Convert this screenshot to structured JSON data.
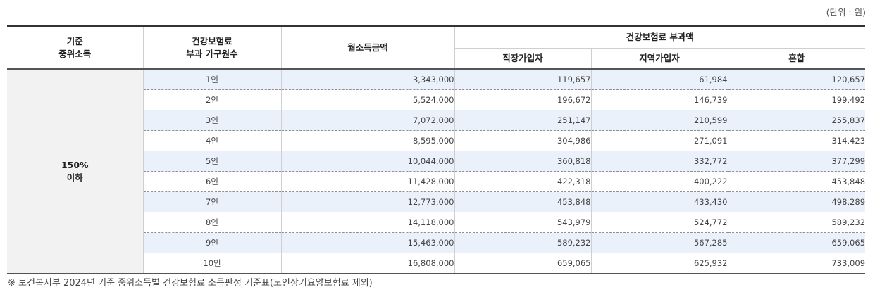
{
  "unit_label": "(단위 : 원)",
  "header": {
    "col_income_line1": "기준",
    "col_income_line2": "중위소득",
    "col_household_line1": "건강보험료",
    "col_household_line2": "부과 가구원수",
    "col_monthly": "월소득금액",
    "group_label": "건강보험료 부과액",
    "sub_workplace": "직장가입자",
    "sub_regional": "지역가입자",
    "sub_mixed": "혼합"
  },
  "category": {
    "line1": "150%",
    "line2": "이하"
  },
  "rows": [
    {
      "household": "1인",
      "monthly": "3,343,000",
      "workplace": "119,657",
      "regional": "61,984",
      "mixed": "120,657"
    },
    {
      "household": "2인",
      "monthly": "5,524,000",
      "workplace": "196,672",
      "regional": "146,739",
      "mixed": "199,492"
    },
    {
      "household": "3인",
      "monthly": "7,072,000",
      "workplace": "251,147",
      "regional": "210,599",
      "mixed": "255,837"
    },
    {
      "household": "4인",
      "monthly": "8,595,000",
      "workplace": "304,986",
      "regional": "271,091",
      "mixed": "314,423"
    },
    {
      "household": "5인",
      "monthly": "10,044,000",
      "workplace": "360,818",
      "regional": "332,772",
      "mixed": "377,299"
    },
    {
      "household": "6인",
      "monthly": "11,428,000",
      "workplace": "422,318",
      "regional": "400,222",
      "mixed": "453,848"
    },
    {
      "household": "7인",
      "monthly": "12,773,000",
      "workplace": "453,848",
      "regional": "433,430",
      "mixed": "498,289"
    },
    {
      "household": "8인",
      "monthly": "14,118,000",
      "workplace": "543,979",
      "regional": "524,772",
      "mixed": "589,232"
    },
    {
      "household": "9인",
      "monthly": "15,463,000",
      "workplace": "589,232",
      "regional": "567,285",
      "mixed": "659,065"
    },
    {
      "household": "10인",
      "monthly": "16,808,000",
      "workplace": "659,065",
      "regional": "625,932",
      "mixed": "733,009"
    }
  ],
  "footnote": "※ 보건복지부 2024년 기준 중위소득별 건강보험료 소득판정 기준표(노인장기요양보험료 제외)",
  "colors": {
    "row_highlight": "#eaf1fa",
    "category_bg": "#f2f2f2",
    "rule": "#333333"
  }
}
